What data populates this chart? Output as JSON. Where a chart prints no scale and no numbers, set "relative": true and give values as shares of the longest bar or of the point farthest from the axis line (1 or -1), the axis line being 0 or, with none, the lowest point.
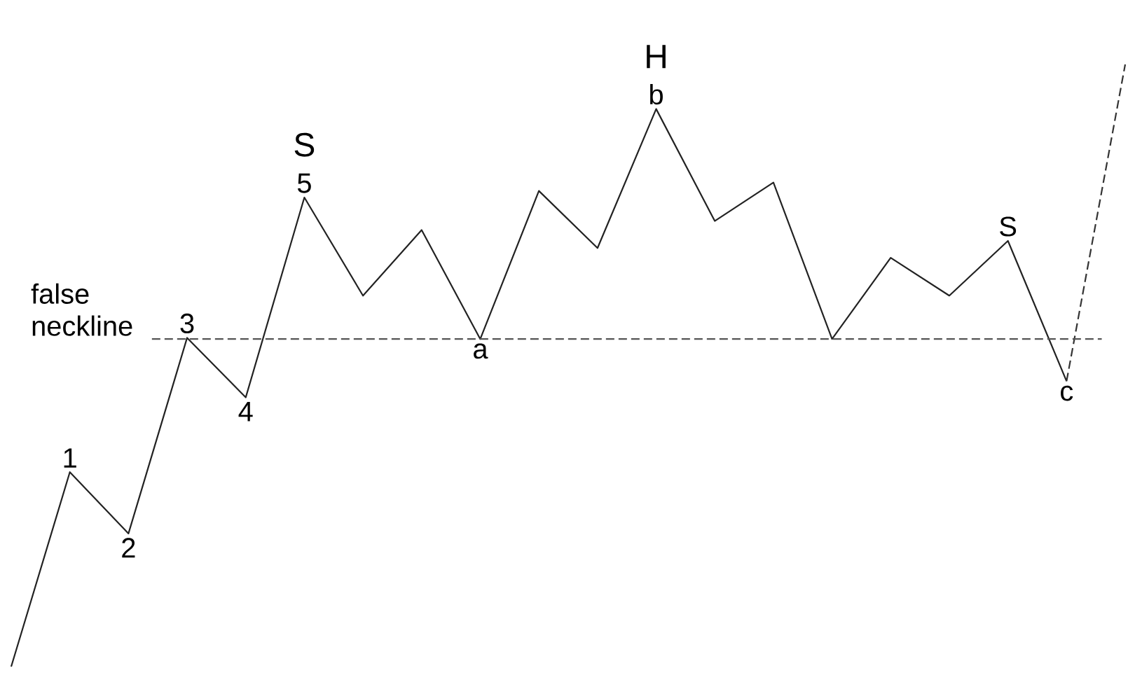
{
  "chart_data": {
    "type": "line",
    "relative": true,
    "categories": [
      null,
      null,
      null,
      null,
      null,
      null,
      null,
      null,
      null,
      null,
      null,
      null,
      null,
      null,
      null,
      null,
      null,
      null,
      null,
      null
    ],
    "series": [
      {
        "color": "#222222",
        "line_style": "solid",
        "values": [
          0,
          0.323,
          0.221,
          0.546,
          0.447,
          0.779,
          0.616,
          0.725,
          0.544,
          0.79,
          0.695,
          0.926,
          0.74,
          0.804,
          0.544,
          0.679,
          0.616,
          0.707,
          0.474,
          null
        ]
      },
      {
        "color": "#333333",
        "line_style": "dashed",
        "values": [
          null,
          null,
          null,
          null,
          null,
          null,
          null,
          null,
          null,
          null,
          null,
          null,
          null,
          null,
          null,
          null,
          null,
          null,
          0.474,
          1.0
        ]
      }
    ],
    "ref_lines": [
      {
        "axis": "y",
        "value": 0.544,
        "label": "false neckline",
        "line_style": "dashed",
        "color": "#555555"
      }
    ],
    "annotations": [
      {
        "text": "1",
        "y": 0.323
      },
      {
        "text": "2",
        "y": 0.221
      },
      {
        "text": "3",
        "y": 0.546
      },
      {
        "text": "4",
        "y": 0.447
      },
      {
        "text": "5",
        "y": 0.779
      },
      {
        "text": "S",
        "y": 0.779
      },
      {
        "text": "a",
        "y": 0.544
      },
      {
        "text": "b",
        "y": 0.926
      },
      {
        "text": "H",
        "y": 0.926
      },
      {
        "text": "S",
        "y": 0.707
      },
      {
        "text": "c",
        "y": 0.474
      }
    ]
  }
}
